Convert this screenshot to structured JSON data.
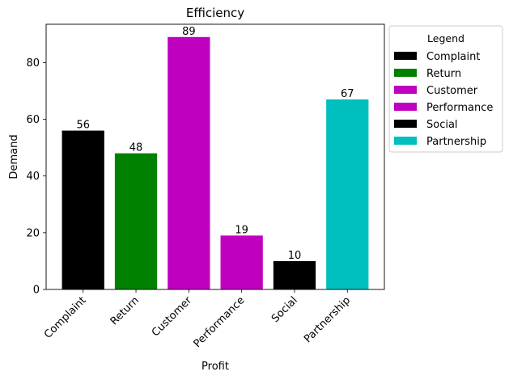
{
  "chart_data": {
    "type": "bar",
    "title": "Efficiency",
    "xlabel": "Profit",
    "ylabel": "Demand",
    "categories": [
      "Complaint",
      "Return",
      "Customer",
      "Performance",
      "Social",
      "Partnership"
    ],
    "values": [
      56,
      48,
      89,
      19,
      10,
      67
    ],
    "colors": [
      "#000000",
      "#008000",
      "#bf00bf",
      "#bf00bf",
      "#000000",
      "#00bfbf"
    ],
    "ylim": [
      0,
      93.5
    ],
    "yticks": [
      0,
      20,
      40,
      60,
      80
    ],
    "grid": false,
    "legend": {
      "title": "Legend",
      "placement": "outside-right-top",
      "entries": [
        "Complaint",
        "Return",
        "Customer",
        "Performance",
        "Social",
        "Partnership"
      ]
    }
  }
}
